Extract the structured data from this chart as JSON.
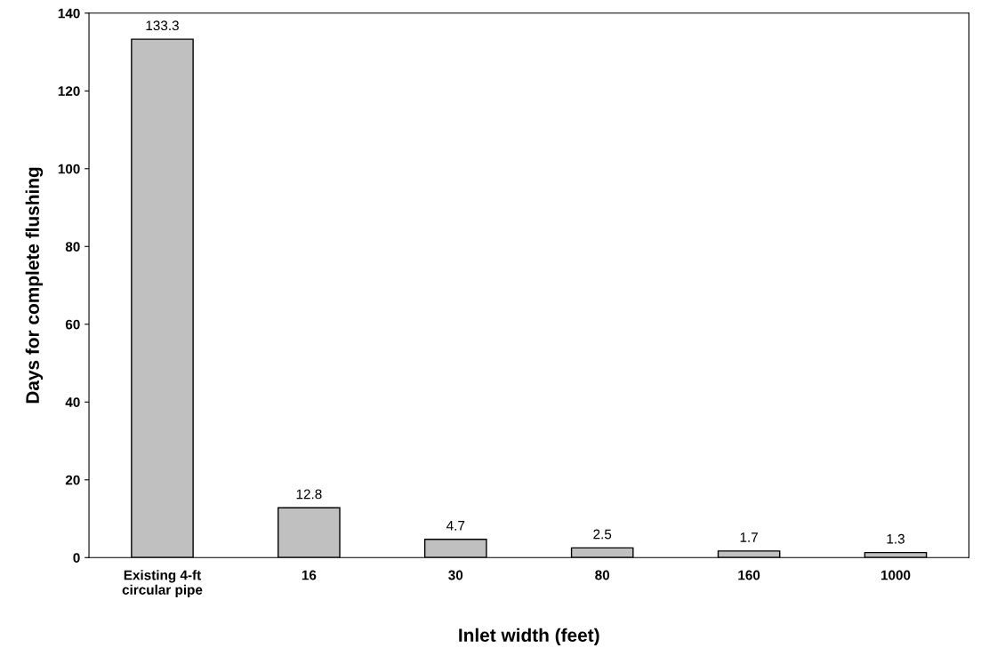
{
  "chart_data": {
    "type": "bar",
    "xlabel": "Inlet width (feet)",
    "ylabel": "Days for complete flushing",
    "categories": [
      "Existing 4-ft\ncircular pipe",
      "16",
      "30",
      "80",
      "160",
      "1000"
    ],
    "values": [
      133.3,
      12.8,
      4.7,
      2.5,
      1.7,
      1.3
    ],
    "color": "#c0c0c0",
    "ylim": [
      0,
      140
    ],
    "yticks": [
      0,
      20,
      40,
      60,
      80,
      100,
      120,
      140
    ],
    "data_labels": true,
    "grid": false,
    "legend": false
  }
}
